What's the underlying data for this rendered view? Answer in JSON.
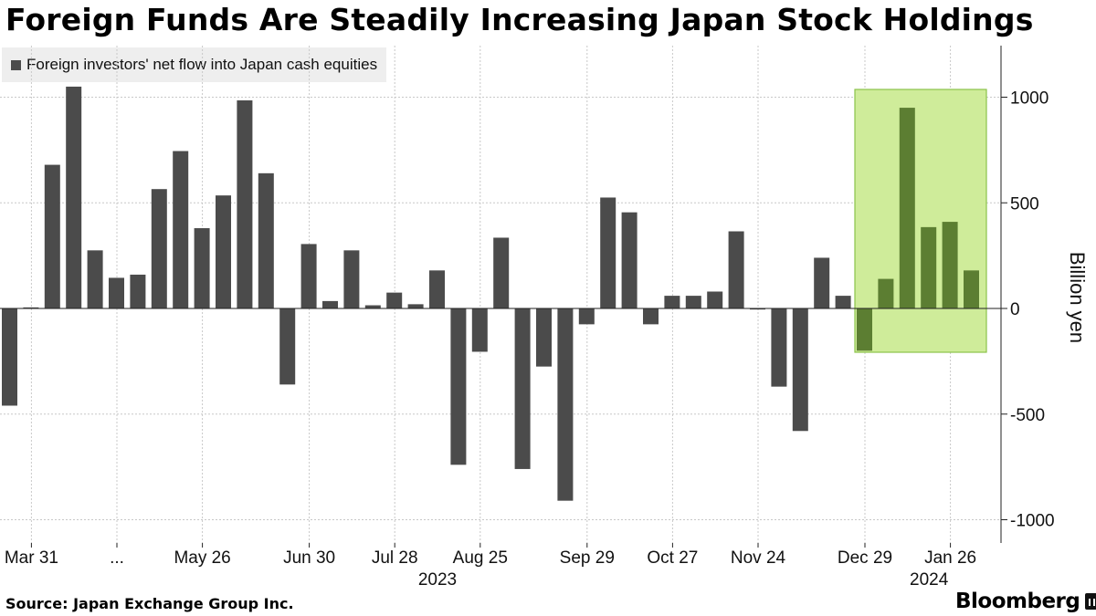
{
  "title": "Foreign Funds Are Steadily Increasing Japan Stock Holdings",
  "source": "Source: Japan Exchange Group Inc.",
  "brand": "Bloomberg",
  "chart_data": {
    "type": "bar",
    "series": [
      {
        "name": "Foreign investors' net flow into Japan cash equities",
        "color": "#4b4b4b",
        "values": [
          -460,
          5,
          680,
          1050,
          275,
          145,
          160,
          565,
          745,
          380,
          535,
          985,
          640,
          -360,
          305,
          35,
          275,
          15,
          75,
          20,
          180,
          -740,
          -205,
          335,
          -760,
          -275,
          -910,
          -75,
          525,
          455,
          -75,
          60,
          60,
          80,
          365,
          -5,
          -370,
          -580,
          240,
          60,
          -200,
          140,
          950,
          385,
          410,
          180
        ]
      }
    ],
    "highlight": {
      "start_index": 40,
      "end_index": 45,
      "color": "#cfec9a",
      "border": "#8bc34a",
      "bar_color": "#5c7e32"
    },
    "ylabel": "Billion yen",
    "ylim": [
      -1100,
      1250
    ],
    "yticks": [
      -1000,
      -500,
      0,
      500,
      1000
    ],
    "ytick_labels": [
      "-1000",
      "-500",
      "0",
      "500",
      "1000"
    ],
    "xtick_labels": [
      {
        "label": "Mar 31",
        "bar_index": 1
      },
      {
        "label": "...",
        "bar_index": 5
      },
      {
        "label": "May 26",
        "bar_index": 9
      },
      {
        "label": "Jun 30",
        "bar_index": 14
      },
      {
        "label": "Jul 28",
        "bar_index": 18
      },
      {
        "label": "Aug 25",
        "bar_index": 22
      },
      {
        "label": "Sep 29",
        "bar_index": 27
      },
      {
        "label": "Oct 27",
        "bar_index": 31
      },
      {
        "label": "Nov 24",
        "bar_index": 35
      },
      {
        "label": "Dec 29",
        "bar_index": 40
      },
      {
        "label": "Jan 26",
        "bar_index": 44
      }
    ],
    "years": [
      {
        "label": "2023",
        "bar_index": 20
      },
      {
        "label": "2024",
        "bar_index": 43
      }
    ],
    "grid": true
  }
}
